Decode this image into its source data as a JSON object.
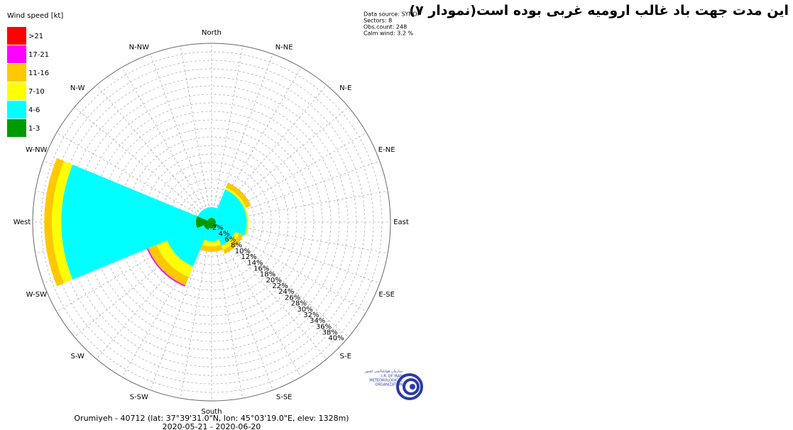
{
  "heading": "این مدت جهت باد غالب ارومیه غربی بوده است(نمودار ۷)",
  "logo": {
    "name_fa": "سازمان هواشناسی کشور",
    "name_en_1": "I.R. OF IRAN",
    "name_en_2": "METEOROLOGICAL",
    "name_en_3": "ORGANIZATION"
  },
  "chart_data": {
    "type": "windrose",
    "legend_title": "Wind speed [kt]",
    "info": [
      "Data source: SYNOP",
      "Sectors: 8",
      "Obs.count: 248",
      "Calm wind: 3.2 %"
    ],
    "footer": [
      "Orumiyeh - 40712 (lat: 37°39'31.0\"N, lon: 45°03'19.0\"E, elev: 1328m)",
      "2020-05-21 - 2020-06-20"
    ],
    "categories": [
      "North",
      "N-NE",
      "N-E",
      "E-NE",
      "East",
      "E-SE",
      "S-E",
      "S-SE",
      "South",
      "S-SW",
      "S-W",
      "W-SW",
      "West",
      "W-NW",
      "N-W",
      "N-NW"
    ],
    "series": [
      {
        "name": "1-3",
        "color": "#009900",
        "values": [
          1,
          null,
          1,
          null,
          1,
          null,
          1.5,
          null,
          1.5,
          null,
          2,
          null,
          3.7,
          null,
          1,
          null
        ]
      },
      {
        "name": "4-6",
        "color": "#00ffff",
        "values": [
          2.5,
          null,
          7.3,
          null,
          7.3,
          null,
          4.5,
          null,
          3,
          null,
          9.3,
          null,
          31.6,
          null,
          2.5,
          null
        ]
      },
      {
        "name": "7-10",
        "color": "#ffff00",
        "values": [
          0,
          null,
          0.5,
          null,
          0.4,
          null,
          1,
          null,
          1.2,
          null,
          2.7,
          null,
          2.2,
          null,
          0,
          null
        ]
      },
      {
        "name": "11-16",
        "color": "#ffc800",
        "values": [
          0,
          null,
          1.2,
          null,
          0,
          null,
          1,
          null,
          1.3,
          null,
          2.1,
          null,
          1.8,
          null,
          0,
          null
        ]
      },
      {
        "name": "17-21",
        "color": "#ff00ff",
        "values": [
          0,
          null,
          0,
          null,
          0,
          null,
          0,
          null,
          0,
          null,
          0.3,
          null,
          0,
          null,
          0,
          null
        ]
      },
      {
        "name": ">21",
        "color": "#ff0000",
        "values": [
          0,
          null,
          0,
          null,
          0,
          null,
          0,
          null,
          0,
          null,
          0,
          null,
          0,
          null,
          0,
          null
        ]
      }
    ],
    "ylim": [
      0,
      42
    ],
    "yticks": [
      {
        "value": 2,
        "label": "2%"
      },
      {
        "value": 4,
        "label": "4%"
      },
      {
        "value": 6,
        "label": "6%"
      },
      {
        "value": 8,
        "label": "8%"
      },
      {
        "value": 10,
        "label": "10%"
      },
      {
        "value": 12,
        "label": "12%"
      },
      {
        "value": 14,
        "label": "14%"
      },
      {
        "value": 16,
        "label": "16%"
      },
      {
        "value": 18,
        "label": "18%"
      },
      {
        "value": 20,
        "label": "20%"
      },
      {
        "value": 22,
        "label": "22%"
      },
      {
        "value": 24,
        "label": "24%"
      },
      {
        "value": 26,
        "label": "26%"
      },
      {
        "value": 28,
        "label": "28%"
      },
      {
        "value": 30,
        "label": "30%"
      },
      {
        "value": 32,
        "label": "32%"
      },
      {
        "value": 34,
        "label": "34%"
      },
      {
        "value": 36,
        "label": "36%"
      },
      {
        "value": 38,
        "label": "38%"
      },
      {
        "value": 40,
        "label": "40%"
      }
    ],
    "grid": true
  }
}
